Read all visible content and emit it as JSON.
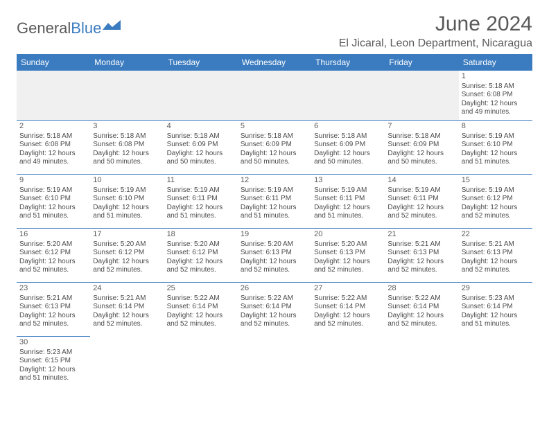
{
  "logo": {
    "text_a": "General",
    "text_b": "Blue",
    "icon_color": "#3b7bbf"
  },
  "title": {
    "month": "June 2024",
    "location": "El Jicaral, Leon Department, Nicaragua"
  },
  "colors": {
    "header_bg": "#3b7bbf",
    "header_fg": "#ffffff",
    "text": "#4a4a4a",
    "grid": "#3b7bbf",
    "blank": "#f0f0f0"
  },
  "day_headers": [
    "Sunday",
    "Monday",
    "Tuesday",
    "Wednesday",
    "Thursday",
    "Friday",
    "Saturday"
  ],
  "first_weekday": 6,
  "days": [
    {
      "n": 1,
      "sr": "5:18 AM",
      "ss": "6:08 PM",
      "dl": "12 hours and 49 minutes."
    },
    {
      "n": 2,
      "sr": "5:18 AM",
      "ss": "6:08 PM",
      "dl": "12 hours and 49 minutes."
    },
    {
      "n": 3,
      "sr": "5:18 AM",
      "ss": "6:08 PM",
      "dl": "12 hours and 50 minutes."
    },
    {
      "n": 4,
      "sr": "5:18 AM",
      "ss": "6:09 PM",
      "dl": "12 hours and 50 minutes."
    },
    {
      "n": 5,
      "sr": "5:18 AM",
      "ss": "6:09 PM",
      "dl": "12 hours and 50 minutes."
    },
    {
      "n": 6,
      "sr": "5:18 AM",
      "ss": "6:09 PM",
      "dl": "12 hours and 50 minutes."
    },
    {
      "n": 7,
      "sr": "5:18 AM",
      "ss": "6:09 PM",
      "dl": "12 hours and 50 minutes."
    },
    {
      "n": 8,
      "sr": "5:19 AM",
      "ss": "6:10 PM",
      "dl": "12 hours and 51 minutes."
    },
    {
      "n": 9,
      "sr": "5:19 AM",
      "ss": "6:10 PM",
      "dl": "12 hours and 51 minutes."
    },
    {
      "n": 10,
      "sr": "5:19 AM",
      "ss": "6:10 PM",
      "dl": "12 hours and 51 minutes."
    },
    {
      "n": 11,
      "sr": "5:19 AM",
      "ss": "6:11 PM",
      "dl": "12 hours and 51 minutes."
    },
    {
      "n": 12,
      "sr": "5:19 AM",
      "ss": "6:11 PM",
      "dl": "12 hours and 51 minutes."
    },
    {
      "n": 13,
      "sr": "5:19 AM",
      "ss": "6:11 PM",
      "dl": "12 hours and 51 minutes."
    },
    {
      "n": 14,
      "sr": "5:19 AM",
      "ss": "6:11 PM",
      "dl": "12 hours and 52 minutes."
    },
    {
      "n": 15,
      "sr": "5:19 AM",
      "ss": "6:12 PM",
      "dl": "12 hours and 52 minutes."
    },
    {
      "n": 16,
      "sr": "5:20 AM",
      "ss": "6:12 PM",
      "dl": "12 hours and 52 minutes."
    },
    {
      "n": 17,
      "sr": "5:20 AM",
      "ss": "6:12 PM",
      "dl": "12 hours and 52 minutes."
    },
    {
      "n": 18,
      "sr": "5:20 AM",
      "ss": "6:12 PM",
      "dl": "12 hours and 52 minutes."
    },
    {
      "n": 19,
      "sr": "5:20 AM",
      "ss": "6:13 PM",
      "dl": "12 hours and 52 minutes."
    },
    {
      "n": 20,
      "sr": "5:20 AM",
      "ss": "6:13 PM",
      "dl": "12 hours and 52 minutes."
    },
    {
      "n": 21,
      "sr": "5:21 AM",
      "ss": "6:13 PM",
      "dl": "12 hours and 52 minutes."
    },
    {
      "n": 22,
      "sr": "5:21 AM",
      "ss": "6:13 PM",
      "dl": "12 hours and 52 minutes."
    },
    {
      "n": 23,
      "sr": "5:21 AM",
      "ss": "6:13 PM",
      "dl": "12 hours and 52 minutes."
    },
    {
      "n": 24,
      "sr": "5:21 AM",
      "ss": "6:14 PM",
      "dl": "12 hours and 52 minutes."
    },
    {
      "n": 25,
      "sr": "5:22 AM",
      "ss": "6:14 PM",
      "dl": "12 hours and 52 minutes."
    },
    {
      "n": 26,
      "sr": "5:22 AM",
      "ss": "6:14 PM",
      "dl": "12 hours and 52 minutes."
    },
    {
      "n": 27,
      "sr": "5:22 AM",
      "ss": "6:14 PM",
      "dl": "12 hours and 52 minutes."
    },
    {
      "n": 28,
      "sr": "5:22 AM",
      "ss": "6:14 PM",
      "dl": "12 hours and 52 minutes."
    },
    {
      "n": 29,
      "sr": "5:23 AM",
      "ss": "6:14 PM",
      "dl": "12 hours and 51 minutes."
    },
    {
      "n": 30,
      "sr": "5:23 AM",
      "ss": "6:15 PM",
      "dl": "12 hours and 51 minutes."
    }
  ],
  "labels": {
    "sunrise": "Sunrise:",
    "sunset": "Sunset:",
    "daylight": "Daylight:"
  }
}
